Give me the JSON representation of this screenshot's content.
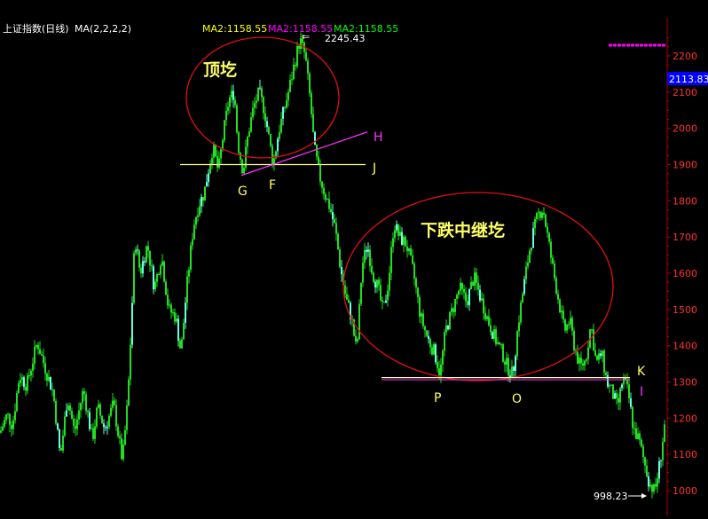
{
  "header": {
    "index_name": "上证指数(日线)",
    "ma_label": "MA(2,2,2,2)",
    "ma_values": [
      {
        "text": "MA2:1158.55",
        "color": "#ffff00"
      },
      {
        "text": "MA2:1158.55",
        "color": "#ff00ff"
      },
      {
        "text": "MA2:1158.55",
        "color": "#00ff00"
      }
    ]
  },
  "current_price_tag": "2113.83",
  "colors": {
    "background": "#000000",
    "axis": "#b00000",
    "grid": "#7a0000",
    "candles": "#22dd22",
    "candle_highlight": "#66ffdd",
    "annotation_text": "#ffff66",
    "ellipse": "#e01010",
    "trend_line": "#ff33ff",
    "support_line": "#ffff99",
    "price_tag_bg": "#0000ff",
    "axis_text": "#ff3030",
    "marker_text": "#ffffff"
  },
  "chart_data": {
    "type": "candlestick",
    "title": "上证指数(日线)",
    "ylim": [
      950,
      2290
    ],
    "yticks": [
      1000,
      1100,
      1200,
      1300,
      1400,
      1500,
      1600,
      1700,
      1800,
      1900,
      2000,
      2100,
      2200
    ],
    "price_path": [
      [
        0,
        1160
      ],
      [
        8,
        1210
      ],
      [
        14,
        1180
      ],
      [
        22,
        1320
      ],
      [
        30,
        1290
      ],
      [
        42,
        1410
      ],
      [
        52,
        1330
      ],
      [
        60,
        1270
      ],
      [
        68,
        1090
      ],
      [
        76,
        1260
      ],
      [
        84,
        1160
      ],
      [
        94,
        1280
      ],
      [
        104,
        1140
      ],
      [
        110,
        1230
      ],
      [
        118,
        1170
      ],
      [
        128,
        1240
      ],
      [
        138,
        1080
      ],
      [
        144,
        1250
      ],
      [
        148,
        1460
      ],
      [
        152,
        1700
      ],
      [
        158,
        1600
      ],
      [
        166,
        1680
      ],
      [
        174,
        1560
      ],
      [
        182,
        1650
      ],
      [
        190,
        1500
      ],
      [
        198,
        1480
      ],
      [
        204,
        1380
      ],
      [
        210,
        1550
      ],
      [
        218,
        1730
      ],
      [
        224,
        1790
      ],
      [
        230,
        1820
      ],
      [
        236,
        1900
      ],
      [
        240,
        1950
      ],
      [
        246,
        1880
      ],
      [
        252,
        1990
      ],
      [
        258,
        2080
      ],
      [
        264,
        2100
      ],
      [
        268,
        1960
      ],
      [
        274,
        1880
      ],
      [
        280,
        1990
      ],
      [
        286,
        2060
      ],
      [
        292,
        2100
      ],
      [
        298,
        2050
      ],
      [
        302,
        1990
      ],
      [
        308,
        1900
      ],
      [
        314,
        1990
      ],
      [
        320,
        2050
      ],
      [
        326,
        2110
      ],
      [
        332,
        2180
      ],
      [
        338,
        2245
      ],
      [
        344,
        2200
      ],
      [
        350,
        2070
      ],
      [
        354,
        1950
      ],
      [
        360,
        1870
      ],
      [
        366,
        1820
      ],
      [
        372,
        1780
      ],
      [
        378,
        1720
      ],
      [
        384,
        1610
      ],
      [
        390,
        1530
      ],
      [
        396,
        1480
      ],
      [
        402,
        1380
      ],
      [
        408,
        1620
      ],
      [
        414,
        1680
      ],
      [
        420,
        1600
      ],
      [
        426,
        1560
      ],
      [
        432,
        1490
      ],
      [
        438,
        1580
      ],
      [
        444,
        1740
      ],
      [
        450,
        1700
      ],
      [
        458,
        1680
      ],
      [
        466,
        1600
      ],
      [
        474,
        1480
      ],
      [
        482,
        1420
      ],
      [
        490,
        1380
      ],
      [
        496,
        1320
      ],
      [
        502,
        1440
      ],
      [
        510,
        1500
      ],
      [
        518,
        1560
      ],
      [
        526,
        1520
      ],
      [
        534,
        1590
      ],
      [
        542,
        1530
      ],
      [
        550,
        1470
      ],
      [
        558,
        1420
      ],
      [
        566,
        1380
      ],
      [
        572,
        1340
      ],
      [
        578,
        1320
      ],
      [
        584,
        1460
      ],
      [
        590,
        1560
      ],
      [
        598,
        1680
      ],
      [
        606,
        1760
      ],
      [
        612,
        1780
      ],
      [
        618,
        1690
      ],
      [
        624,
        1600
      ],
      [
        630,
        1520
      ],
      [
        636,
        1440
      ],
      [
        642,
        1470
      ],
      [
        648,
        1390
      ],
      [
        654,
        1340
      ],
      [
        660,
        1360
      ],
      [
        666,
        1460
      ],
      [
        672,
        1350
      ],
      [
        678,
        1380
      ],
      [
        684,
        1300
      ],
      [
        690,
        1270
      ],
      [
        696,
        1230
      ],
      [
        702,
        1310
      ],
      [
        708,
        1270
      ],
      [
        714,
        1170
      ],
      [
        720,
        1140
      ],
      [
        726,
        1080
      ],
      [
        732,
        1020
      ],
      [
        738,
        998
      ],
      [
        744,
        1080
      ],
      [
        750,
        1200
      ]
    ],
    "extremes": {
      "high": 2245.43,
      "low": 998.23
    },
    "patterns": [
      {
        "label": "顶圪",
        "kind": "top_formation"
      },
      {
        "label": "下跌中继圪",
        "kind": "continuation_formation"
      }
    ],
    "point_labels": [
      "G",
      "F",
      "H",
      "J",
      "P",
      "O",
      "K",
      "I"
    ],
    "lines": {
      "J": {
        "price": 1900,
        "color": "yellow"
      },
      "H": {
        "from_price": 1870,
        "to_price": 1990,
        "color": "magenta"
      },
      "K": {
        "price": 1312,
        "color": "yellow"
      },
      "I": {
        "price": 1306,
        "color": "magenta"
      }
    },
    "high_label": "2245.43",
    "low_label": "998.23"
  }
}
